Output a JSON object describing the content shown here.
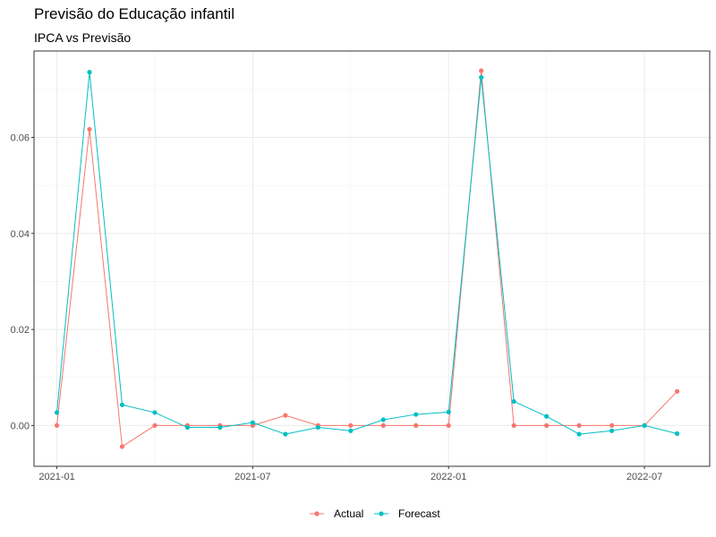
{
  "chart_data": {
    "type": "line",
    "title": "Previsão do Educação infantil",
    "subtitle": "IPCA vs Previsão",
    "xlabel": "",
    "ylabel": "",
    "x": [
      "2021-01",
      "2021-02",
      "2021-03",
      "2021-04",
      "2021-05",
      "2021-06",
      "2021-07",
      "2021-08",
      "2021-09",
      "2021-10",
      "2021-11",
      "2021-12",
      "2022-01",
      "2022-02",
      "2022-03",
      "2022-04",
      "2022-05",
      "2022-06",
      "2022-07",
      "2022-08"
    ],
    "x_ticks": [
      "2021-01",
      "2021-07",
      "2022-01",
      "2022-07"
    ],
    "y_ticks": [
      "0.00",
      "0.02",
      "0.04",
      "0.06"
    ],
    "ylim": [
      -0.0085,
      0.078
    ],
    "grid": true,
    "legend_position": "bottom",
    "series": [
      {
        "name": "Actual",
        "color": "#F8766D",
        "values": [
          0.0,
          0.0617,
          -0.0044,
          0.0,
          0.0,
          0.0,
          0.0,
          0.0021,
          0.0,
          0.0,
          0.0,
          0.0,
          0.0,
          0.0739,
          0.0,
          0.0,
          0.0,
          0.0,
          0.0,
          0.0071
        ]
      },
      {
        "name": "Forecast",
        "color": "#00BFC4",
        "values": [
          0.0027,
          0.0736,
          0.0043,
          0.0027,
          -0.0004,
          -0.0004,
          0.0006,
          -0.0018,
          -0.0004,
          -0.0011,
          0.0012,
          0.0023,
          0.0028,
          0.0725,
          0.005,
          0.0019,
          -0.0018,
          -0.0011,
          0.0,
          -0.0017
        ]
      }
    ]
  }
}
